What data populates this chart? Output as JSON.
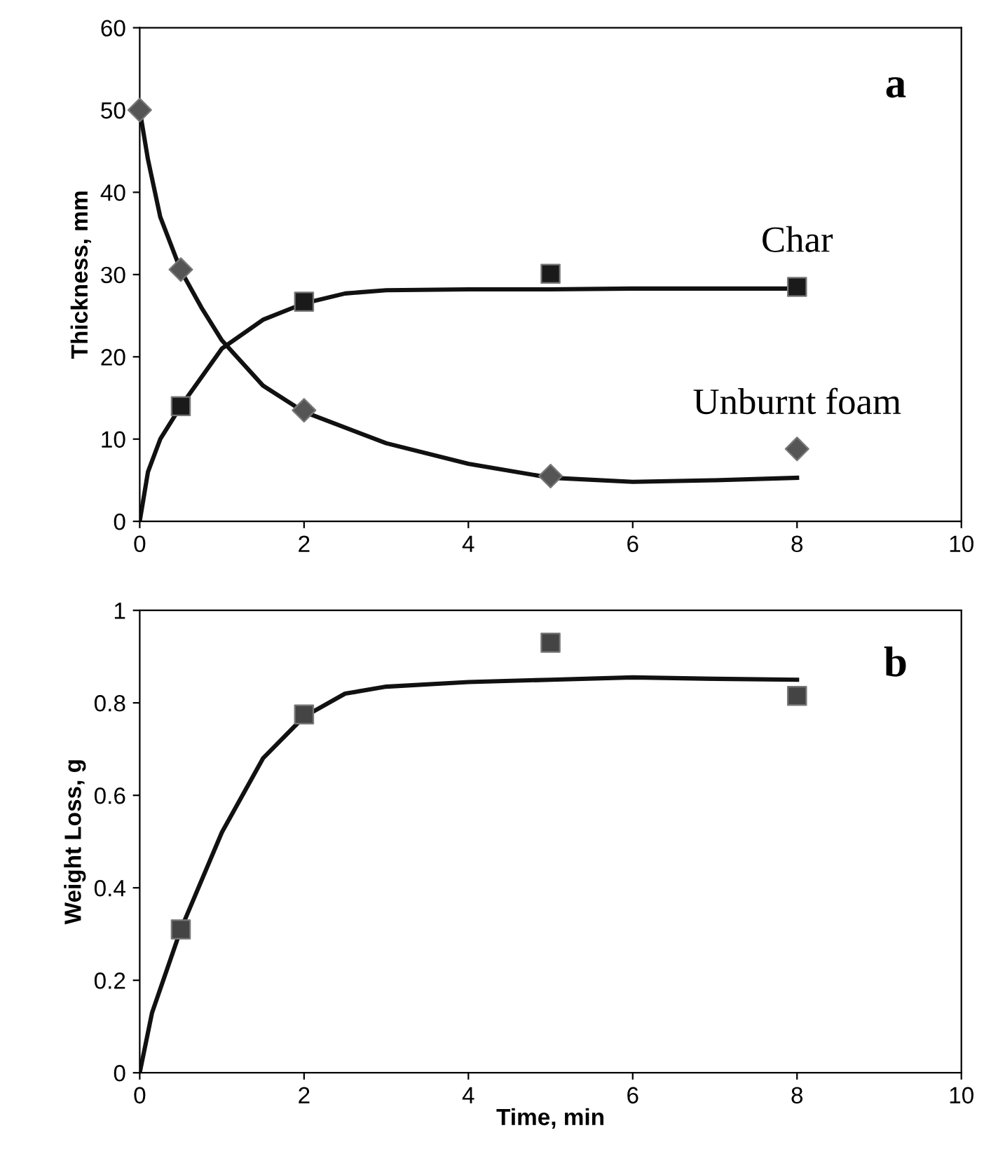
{
  "chart_data": [
    {
      "type": "scatter",
      "ylabel": "Thickness, mm",
      "xlim": [
        0,
        10
      ],
      "xticks": [
        0,
        2,
        4,
        6,
        8,
        10
      ],
      "ylim": [
        0,
        60
      ],
      "yticks": [
        0,
        10,
        20,
        30,
        40,
        50,
        60
      ],
      "grid": false,
      "legend": false,
      "annotations": [
        "a"
      ],
      "series": [
        {
          "name": "Char",
          "marker": "square",
          "color": "#1a1a1a",
          "x": [
            0.5,
            2,
            5,
            8
          ],
          "values": [
            14,
            26.7,
            30.1,
            28.5
          ]
        },
        {
          "name": "Unburnt foam",
          "marker": "diamond",
          "color": "#555555",
          "x": [
            0,
            0.5,
            2,
            5,
            8
          ],
          "values": [
            50,
            30.6,
            13.5,
            5.5,
            8.8
          ]
        },
        {
          "type": "line",
          "color": "#111111",
          "marker": "none",
          "line_style": "solid",
          "x": [
            0,
            0.1,
            0.25,
            0.5,
            1,
            1.5,
            2,
            2.5,
            3,
            4,
            5,
            6,
            7,
            8
          ],
          "values": [
            0,
            6,
            10,
            14,
            21,
            24.5,
            26.5,
            27.7,
            28.1,
            28.2,
            28.2,
            28.3,
            28.3,
            28.3
          ]
        },
        {
          "type": "line",
          "color": "#111111",
          "marker": "none",
          "line_style": "solid",
          "x": [
            0,
            0.1,
            0.25,
            0.5,
            0.75,
            1,
            1.5,
            2,
            3,
            4,
            5,
            6,
            7,
            8
          ],
          "values": [
            50,
            44,
            37,
            30.5,
            26,
            22,
            16.5,
            13.3,
            9.5,
            7,
            5.3,
            4.8,
            5,
            5.3
          ]
        }
      ]
    },
    {
      "type": "scatter",
      "ylabel": "Weight Loss, g",
      "xlabel": "Time, min",
      "xlim": [
        0,
        10
      ],
      "xticks": [
        0,
        2,
        4,
        6,
        8,
        10
      ],
      "ylim": [
        0,
        1
      ],
      "yticks": [
        0,
        0.2,
        0.4,
        0.6,
        0.8,
        1
      ],
      "grid": false,
      "legend": false,
      "annotations": [
        "b"
      ],
      "series": [
        {
          "marker": "square",
          "color": "#444444",
          "x": [
            0.5,
            2,
            5,
            8
          ],
          "values": [
            0.31,
            0.775,
            0.93,
            0.815
          ]
        },
        {
          "type": "line",
          "color": "#111111",
          "marker": "none",
          "line_style": "solid",
          "x": [
            0,
            0.15,
            0.5,
            1,
            1.5,
            2,
            2.5,
            3,
            4,
            5,
            6,
            7,
            8
          ],
          "values": [
            0,
            0.13,
            0.31,
            0.52,
            0.68,
            0.77,
            0.82,
            0.835,
            0.845,
            0.85,
            0.855,
            0.852,
            0.85
          ]
        }
      ]
    }
  ]
}
